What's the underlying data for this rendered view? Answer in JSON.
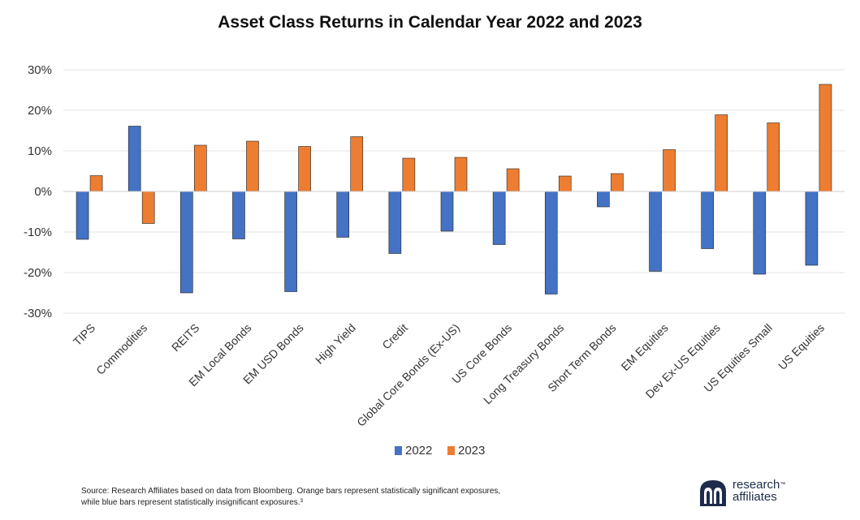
{
  "chart_data": {
    "type": "bar",
    "title": "Asset Class Returns in Calendar Year 2022 and 2023",
    "categories": [
      "TIPS",
      "Commodities",
      "REITS",
      "EM Local Bonds",
      "EM USD Bonds",
      "High Yield",
      "Credit",
      "Global Core Bonds (Ex-US)",
      "US Core Bonds",
      "Long Treasury Bonds",
      "Short Term Bonds",
      "EM Equities",
      "Dev Ex-US Equities",
      "US Equities Small",
      "US Equities"
    ],
    "series": [
      {
        "name": "2022",
        "color": "#4472c4",
        "values": [
          -11.8,
          16.1,
          -25.0,
          -11.7,
          -24.7,
          -11.3,
          -15.3,
          -9.8,
          -13.1,
          -25.3,
          -3.8,
          -19.7,
          -14.1,
          -20.4,
          -18.2
        ]
      },
      {
        "name": "2023",
        "color": "#ed7d31",
        "values": [
          3.9,
          -7.9,
          11.4,
          12.4,
          11.1,
          13.5,
          8.2,
          8.4,
          5.6,
          3.8,
          4.4,
          10.3,
          18.9,
          16.9,
          26.4
        ]
      }
    ],
    "ylim": [
      -30,
      30
    ],
    "yticks": [
      30,
      20,
      10,
      0,
      -10,
      -20,
      -30
    ],
    "ytick_labels": [
      "30%",
      "20%",
      "10%",
      "0%",
      "-10%",
      "-20%",
      "-30%"
    ],
    "grid": true,
    "legend_position": "bottom",
    "xlabel": "",
    "ylabel": ""
  },
  "footer": {
    "source_line1": "Source: Research Affiliates based on data from Bloomberg. Orange bars represent statistically significant exposures,",
    "source_line2": "while blue bars represent statistically insignificant exposures.³"
  },
  "logo": {
    "line1": "research",
    "tm": "™",
    "line2": "affiliates",
    "color": "#1e2b4a"
  }
}
